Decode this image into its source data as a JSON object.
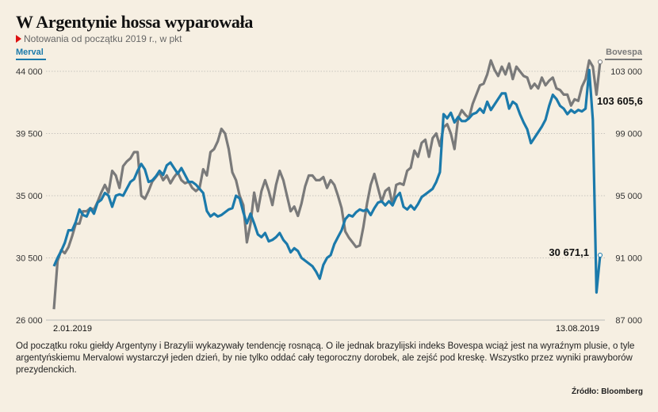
{
  "chart_data": {
    "type": "line",
    "title": "W Argentynie hossa wyparowała",
    "subtitle": "Notowania od początku 2019 r., w pkt",
    "x_labels": [
      "2.01.2019",
      "13.08.2019"
    ],
    "left_axis": {
      "label": "Merval",
      "ylim": [
        26000,
        44000
      ],
      "ticks": [
        "44 000",
        "39 500",
        "35 000",
        "30 500",
        "26 000"
      ]
    },
    "right_axis": {
      "label": "Bovespa",
      "ylim": [
        87000,
        103000
      ],
      "ticks": [
        "103 000",
        "99 000",
        "95 000",
        "91 000",
        "87 000"
      ]
    },
    "grid": true,
    "colors": {
      "merval": "#1b7aab",
      "bovespa": "#7a7a7a",
      "accent": "#d11414"
    },
    "series": [
      {
        "name": "Merval",
        "axis": "left",
        "values": [
          29900,
          30500,
          31000,
          31600,
          32500,
          32500,
          33100,
          34000,
          33600,
          33500,
          34100,
          33700,
          34500,
          34700,
          35200,
          35000,
          34200,
          35000,
          35100,
          35000,
          35500,
          36000,
          36200,
          36800,
          37300,
          36900,
          36000,
          36100,
          36400,
          36800,
          36500,
          37200,
          37400,
          37000,
          36600,
          37000,
          36500,
          36000,
          36000,
          35800,
          35500,
          35200,
          33900,
          33500,
          33700,
          33500,
          33600,
          33800,
          34000,
          34100,
          35000,
          34800,
          33800,
          33000,
          33700,
          33000,
          32200,
          32000,
          32300,
          31700,
          31800,
          32000,
          32300,
          31800,
          31500,
          30900,
          31200,
          31000,
          30500,
          30300,
          30100,
          29900,
          29500,
          29000,
          30000,
          30500,
          30700,
          31500,
          32000,
          32500,
          33300,
          33600,
          33500,
          33800,
          34000,
          33900,
          34000,
          33600,
          34100,
          34500,
          34600,
          34300,
          34600,
          34300,
          34900,
          35200,
          34200,
          34000,
          34300,
          34000,
          34400,
          34900,
          35100,
          35300,
          35500,
          36000,
          36700,
          40900,
          40600,
          41000,
          40300,
          40700,
          40400,
          40400,
          40600,
          40900,
          41000,
          41300,
          41000,
          41800,
          41200,
          41600,
          42000,
          42400,
          42400,
          41300,
          41800,
          41600,
          40900,
          40300,
          39800,
          38800,
          39200,
          39600,
          40000,
          40500,
          41500,
          42300,
          42000,
          41500,
          41300,
          40900,
          41200,
          41000,
          41200,
          41100,
          41300,
          44100,
          40500,
          28000,
          30700
        ]
      },
      {
        "name": "Bovespa",
        "axis": "right",
        "values": [
          87700,
          90800,
          91500,
          91300,
          91700,
          92400,
          93200,
          93200,
          94000,
          94000,
          94200,
          94100,
          94600,
          95200,
          95700,
          95200,
          96600,
          96300,
          95500,
          96900,
          97200,
          97400,
          97800,
          97800,
          95000,
          94800,
          95300,
          95900,
          96200,
          96500,
          96000,
          96300,
          95800,
          96200,
          96500,
          96000,
          95800,
          95900,
          95500,
          95300,
          95500,
          96700,
          96300,
          97800,
          98000,
          98500,
          99300,
          99000,
          98000,
          96500,
          96000,
          95000,
          94400,
          92000,
          93200,
          95200,
          94000,
          95300,
          96000,
          95300,
          94400,
          95700,
          96600,
          96000,
          95000,
          94000,
          94300,
          93700,
          94500,
          95600,
          96300,
          96300,
          96000,
          96000,
          96200,
          95500,
          96000,
          95700,
          95000,
          94200,
          92700,
          92300,
          92000,
          91700,
          91800,
          93000,
          94500,
          95700,
          96400,
          95500,
          94600,
          95300,
          95500,
          94400,
          95700,
          95800,
          95700,
          96600,
          96800,
          97900,
          97500,
          98400,
          98600,
          97500,
          98700,
          99000,
          98200,
          99400,
          99600,
          99000,
          98000,
          100000,
          100500,
          100200,
          100000,
          100900,
          101500,
          102100,
          102200,
          102800,
          103700,
          103100,
          102700,
          103300,
          102800,
          103500,
          102500,
          103300,
          103000,
          102700,
          102600,
          101900,
          102200,
          101900,
          102600,
          102100,
          102400,
          102600,
          101900,
          101800,
          101500,
          101500,
          100800,
          101200,
          101100,
          102000,
          102500,
          103700,
          103300,
          101500,
          103605.6
        ]
      }
    ],
    "annotations": [
      {
        "text": "103 605,6",
        "series": "Bovespa"
      },
      {
        "text": "30 671,1",
        "series": "Merval"
      }
    ]
  },
  "caption": "Od początku roku giełdy Argentyny i Brazylii wykazywały tendencję rosnącą. O ile jednak brazylijski indeks Bovespa wciąż jest na wyraźnym plusie, o tyle argentyńskiemu Mervalowi wystarczył jeden dzień, by nie tylko oddać cały tegoroczny dorobek, ale zejść pod kreskę. Wszystko przez wyniki prawyborów prezydenckich.",
  "source": "Źródło: Bloomberg"
}
